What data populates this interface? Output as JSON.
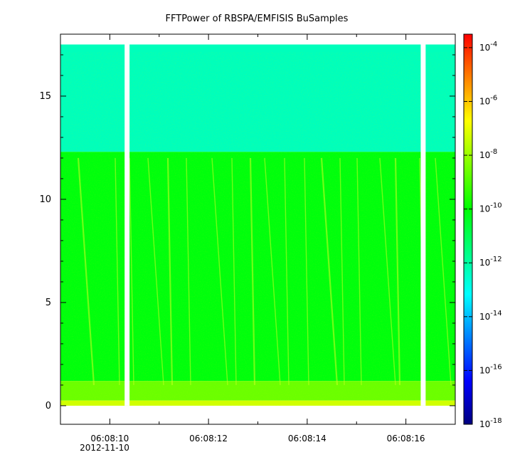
{
  "chart_data": {
    "type": "heatmap",
    "title": "FFTPower of RBSPA/EMFISIS  BuSamples",
    "xlabel": "",
    "ylabel": "",
    "x_range": [
      "06:08:09.0",
      "06:08:17.0"
    ],
    "x_ticks": [
      {
        "value": "06:08:10",
        "label": "06:08:10"
      },
      {
        "value": "06:08:12",
        "label": "06:08:12"
      },
      {
        "value": "06:08:14",
        "label": "06:08:14"
      },
      {
        "value": "06:08:16",
        "label": "06:08:16"
      }
    ],
    "x_date_label": "2012-11-10",
    "ylim": [
      -0.9,
      18.0
    ],
    "y_ticks": [
      0,
      5,
      10,
      15
    ],
    "data_y_range": [
      0,
      17.5
    ],
    "data_gaps": [
      {
        "start": "06:08:10.3",
        "end": "06:08:10.4"
      },
      {
        "start": "06:08:16.3",
        "end": "06:08:16.4"
      }
    ],
    "colorbar": {
      "scale": "log",
      "range_exponents": [
        -18,
        -3.5
      ],
      "tick_exponents": [
        -18,
        -16,
        -14,
        -12,
        -10,
        -8,
        -6,
        -4
      ],
      "tick_base": "10",
      "colormap": [
        "#00007f",
        "#0000ff",
        "#0080ff",
        "#00ffff",
        "#00ff80",
        "#00ff00",
        "#80ff00",
        "#ffff00",
        "#ff8000",
        "#ff0000"
      ]
    },
    "bands": [
      {
        "y_from": 12.3,
        "y_to": 17.5,
        "level": -12.3
      },
      {
        "y_from": 1.2,
        "y_to": 12.3,
        "level": -10.1
      },
      {
        "y_from": 0.25,
        "y_to": 1.2,
        "level": -8.6
      },
      {
        "y_from": 0.0,
        "y_to": 0.25,
        "level": -7.3
      }
    ],
    "grid": false,
    "legend": "colorbar-right"
  }
}
